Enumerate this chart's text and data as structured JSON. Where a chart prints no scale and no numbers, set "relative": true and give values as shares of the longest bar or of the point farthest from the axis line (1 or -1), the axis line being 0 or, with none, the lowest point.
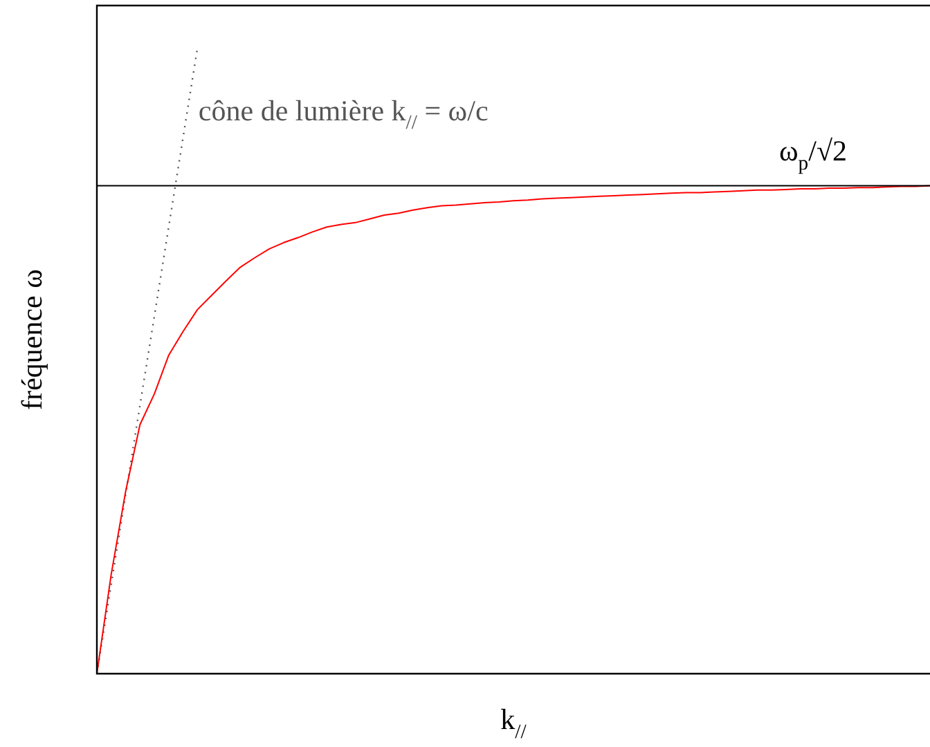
{
  "chart_data": {
    "type": "line",
    "relative": true,
    "xlabel": "k$_{//}$",
    "ylabel": "fréquence ω",
    "legend": false,
    "categories": [
      null,
      null,
      null,
      null,
      null,
      null,
      null,
      null,
      null,
      null,
      null,
      null,
      null,
      null,
      null,
      null,
      null,
      null,
      null,
      null,
      null,
      null,
      null,
      null,
      null,
      null,
      null,
      null,
      null,
      null,
      null,
      null,
      null,
      null,
      null,
      null,
      null,
      null,
      null,
      null,
      null,
      null,
      null,
      null,
      null,
      null,
      null,
      null,
      null,
      null,
      null,
      null,
      null,
      null,
      null,
      null,
      null,
      null,
      null
    ],
    "series": [
      {
        "color": "#ff0000",
        "line_style": "solid",
        "values": [
          0,
          0.159,
          0.291,
          0.398,
          0.447,
          0.509,
          0.547,
          0.582,
          0.605,
          0.628,
          0.65,
          0.665,
          0.679,
          0.689,
          0.697,
          0.706,
          0.714,
          0.718,
          0.721,
          0.727,
          0.733,
          0.736,
          0.741,
          0.745,
          0.748,
          0.749,
          0.751,
          0.753,
          0.754,
          0.756,
          0.757,
          0.759,
          0.76,
          0.761,
          0.762,
          0.763,
          0.764,
          0.765,
          0.766,
          0.767,
          0.768,
          0.769,
          0.769,
          0.77,
          0.771,
          0.772,
          0.773,
          0.773,
          0.774,
          0.775,
          0.775,
          0.776,
          0.776,
          0.777,
          0.777,
          0.778,
          0.779,
          0.779,
          0.78
        ]
      },
      {
        "name": "cône de lumière k$_{//}$ = ω/c",
        "color": "#555555",
        "line_style": "dotted",
        "values": [
          0,
          0.143,
          0.286,
          0.429,
          0.571,
          0.714,
          0.857,
          1,
          null,
          null,
          null,
          null,
          null,
          null,
          null,
          null,
          null,
          null,
          null,
          null,
          null,
          null,
          null,
          null,
          null,
          null,
          null,
          null,
          null,
          null,
          null,
          null,
          null,
          null,
          null,
          null,
          null,
          null,
          null,
          null,
          null,
          null,
          null,
          null,
          null,
          null,
          null,
          null,
          null,
          null,
          null,
          null,
          null,
          null,
          null,
          null,
          null,
          null,
          null
        ]
      }
    ],
    "ref_lines": [
      {
        "axis": "y",
        "value": 0.78,
        "label": "ω$_{p}$/√2",
        "color": "#000000"
      }
    ]
  }
}
